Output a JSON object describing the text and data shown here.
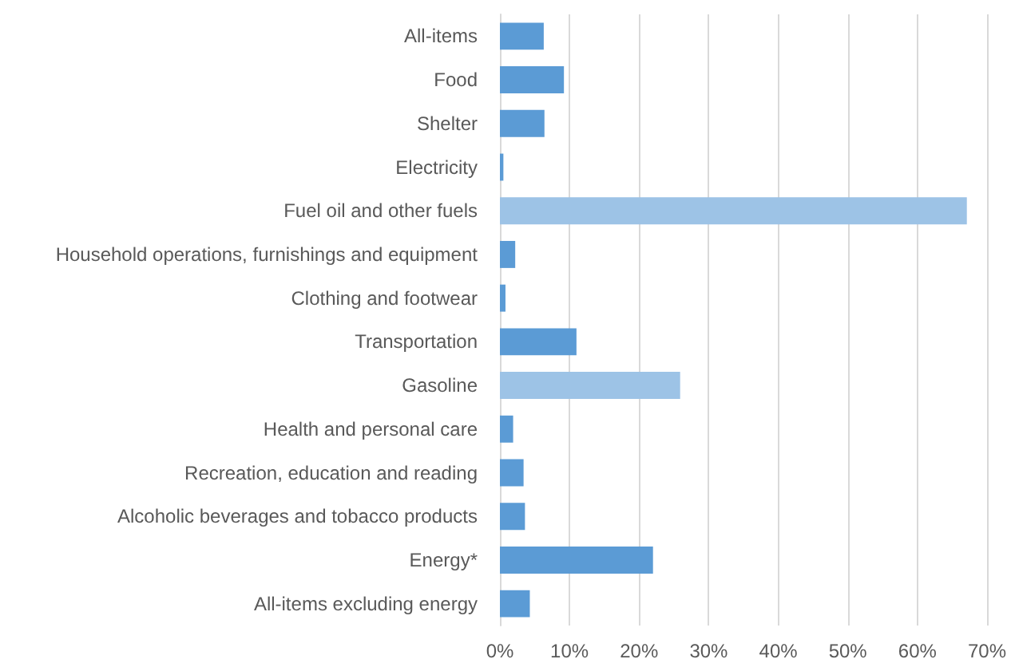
{
  "chart_data": {
    "type": "bar",
    "orientation": "horizontal",
    "categories": [
      "All-items",
      "Food",
      "Shelter",
      "Electricity",
      "Fuel oil and other fuels",
      "Household operations, furnishings and equipment",
      "Clothing and footwear",
      "Transportation",
      "Gasoline",
      "Health and personal care",
      "Recreation, education and reading",
      "Alcoholic beverages and tobacco products",
      "Energy*",
      "All-items excluding energy"
    ],
    "values": [
      6.3,
      9.2,
      6.4,
      0.5,
      67.1,
      2.2,
      0.8,
      11.0,
      25.9,
      1.9,
      3.4,
      3.6,
      22.0,
      4.3
    ],
    "colors": [
      "#5b9bd5",
      "#5b9bd5",
      "#5b9bd5",
      "#5b9bd5",
      "#9dc3e6",
      "#5b9bd5",
      "#5b9bd5",
      "#5b9bd5",
      "#9dc3e6",
      "#5b9bd5",
      "#5b9bd5",
      "#5b9bd5",
      "#5b9bd5",
      "#5b9bd5"
    ],
    "xlim": [
      0,
      70
    ],
    "xticks": [
      {
        "value": 0,
        "label": "0%"
      },
      {
        "value": 10,
        "label": "10%"
      },
      {
        "value": 20,
        "label": "20%"
      },
      {
        "value": 30,
        "label": "30%"
      },
      {
        "value": 40,
        "label": "40%"
      },
      {
        "value": 50,
        "label": "50%"
      },
      {
        "value": 60,
        "label": "60%"
      },
      {
        "value": 70,
        "label": "70%"
      }
    ],
    "grid": "x"
  }
}
